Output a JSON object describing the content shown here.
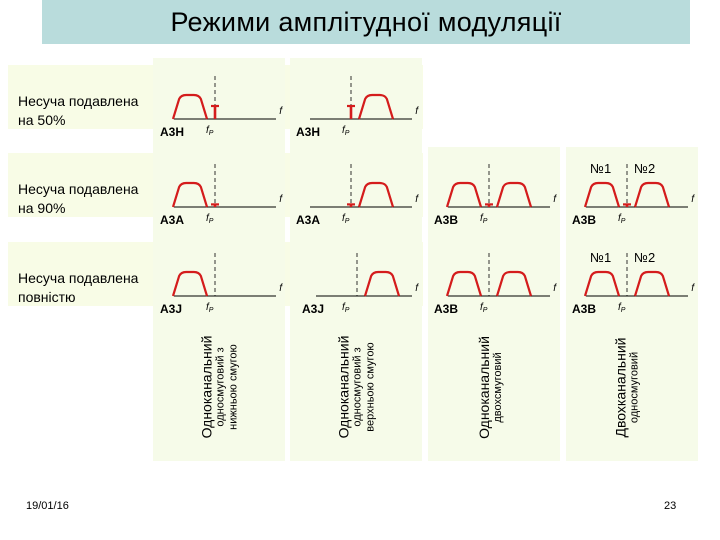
{
  "title": "Режими амплітудної модуляції",
  "footer": {
    "date": "19/01/16",
    "page": "23"
  },
  "rows": [
    {
      "label": "Несуча подавлена\nна 50%"
    },
    {
      "label": "Несуча подавлена\nна 90%"
    },
    {
      "label": "Несуча подавлена\nповністю"
    }
  ],
  "columns": [
    {
      "line1": "Одноканальний",
      "line2": "односмуговий з\nнижньою смугою"
    },
    {
      "line1": "Одноканальний",
      "line2": "односмуговий з\nверхньою смугою"
    },
    {
      "line1": "Одноканальний",
      "line2": "двохсмуговий"
    },
    {
      "line1": "Двохканальний",
      "line2": "односмуговий"
    }
  ],
  "axis": {
    "f": "f",
    "fp_main": "f",
    "fp_sub": "P"
  },
  "channel_labels": {
    "ch1": "№1",
    "ch2": "№2"
  },
  "carrier_level": {
    "r0": 0.5,
    "r1": 0.9,
    "r2": 1.0
  },
  "colors": {
    "curve": "#d41c1c",
    "axis": "#000000"
  },
  "panels": [
    {
      "id": "p-r0-c0",
      "mode": "A3H"
    },
    {
      "id": "p-r0-c1",
      "mode": "A3H"
    },
    {
      "id": "p-r1-c0",
      "mode": "A3A"
    },
    {
      "id": "p-r1-c1",
      "mode": "A3A"
    },
    {
      "id": "p-r1-c2",
      "mode": "A3B"
    },
    {
      "id": "p-r1-c3",
      "mode": "A3B"
    },
    {
      "id": "p-r2-c0",
      "mode": "A3J"
    },
    {
      "id": "p-r2-c1",
      "mode": "A3J"
    },
    {
      "id": "p-r2-c2",
      "mode": "A3B"
    },
    {
      "id": "p-r2-c3",
      "mode": "A3B"
    }
  ]
}
